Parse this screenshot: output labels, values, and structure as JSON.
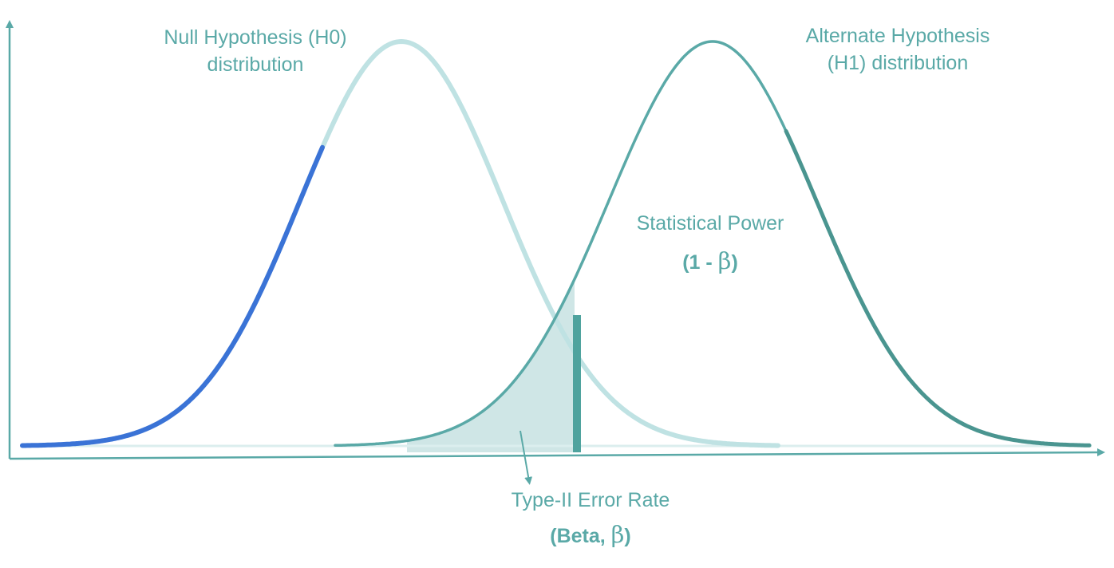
{
  "labels": {
    "null_line1": "Null Hypothesis (H0)",
    "null_line2": "distribution",
    "alt_line1": "Alternate Hypothesis",
    "alt_line2": "(H1) distribution",
    "power_title": "Statistical Power",
    "power_prefix": "(1 - ",
    "power_symbol": "β",
    "power_suffix": ")",
    "beta_title": "Type-II Error Rate",
    "beta_prefix": "(Beta, ",
    "beta_symbol": "β",
    "beta_suffix": ")"
  },
  "colors": {
    "axis": "#5aa9a7",
    "null_curve": "#bfe2e3",
    "null_tail": "#3a73d6",
    "alt_curve": "#5aa9a7",
    "alt_tail": "#4a9590",
    "beta_fill": "#cfe6e6",
    "critical_line": "#4fa39e",
    "text": "#5aa9a7"
  }
}
